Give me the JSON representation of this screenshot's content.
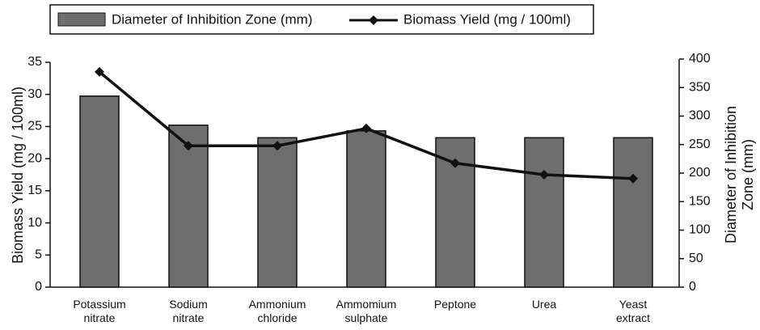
{
  "chart_data": {
    "type": "bar",
    "categories": [
      "Potassium nitrate",
      "Sodium nitrate",
      "Ammonium chloride",
      "Ammomium sulphate",
      "Peptone",
      "Urea",
      "Yeast extract"
    ],
    "series": [
      {
        "name": "Diameter of Inhibition Zone (mm)",
        "type": "bar",
        "axis": "y2",
        "color": "#6e6e6e",
        "values": [
          335,
          284,
          262,
          274,
          262,
          262,
          262
        ]
      },
      {
        "name": "Biomass Yield (mg / 100ml)",
        "type": "line",
        "axis": "y",
        "color": "#111111",
        "values": [
          33.5,
          22,
          22,
          24.7,
          19.3,
          17.5,
          16.9
        ]
      }
    ],
    "ylabel": "Biomass Yield (mg / 100ml)",
    "y2label": "Diameter of Inhibition Zone (mm)",
    "ylim": [
      0,
      35
    ],
    "yticks": [
      0,
      5,
      10,
      15,
      20,
      25,
      30,
      35
    ],
    "y2lim": [
      0,
      400
    ],
    "y2ticks": [
      0,
      50,
      100,
      150,
      200,
      250,
      300,
      350,
      400
    ]
  }
}
